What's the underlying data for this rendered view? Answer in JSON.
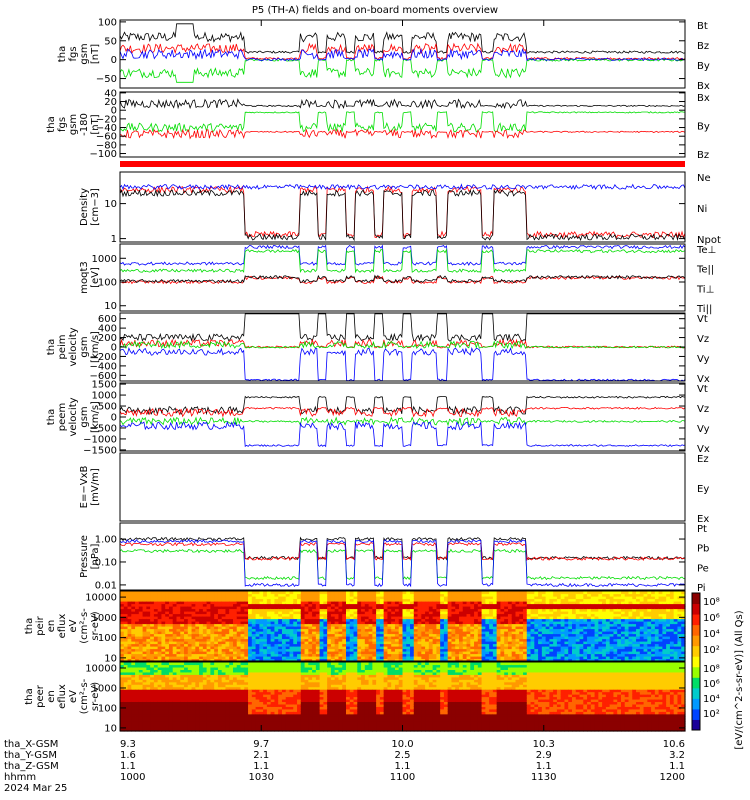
{
  "title": "P5 (TH-A) fields and on-board moments overview",
  "colors": {
    "black": "#000000",
    "red": "#ff0000",
    "green": "#00dd00",
    "blue": "#0000ff"
  },
  "chart_data": {
    "type": "line",
    "title": "P5 (TH-A) fields and on-board moments overview",
    "panels": [
      {
        "id": "fgs",
        "ylabel": [
          "tha",
          "fgs",
          "gsm",
          "[nT]"
        ],
        "ticks": [
          "100",
          "50",
          "0",
          "−50"
        ],
        "tick_vals": [
          100,
          50,
          0,
          -50
        ],
        "ylim": [
          -75,
          105
        ],
        "legend": [
          {
            "name": "Bt",
            "color": "black"
          },
          {
            "name": "Bz",
            "color": "red"
          },
          {
            "name": "By",
            "color": "green"
          },
          {
            "name": "Bx",
            "color": "blue"
          }
        ]
      },
      {
        "id": "fgs180",
        "ylabel": [
          "tha",
          "fgs",
          "gsm",
          "-180",
          "[nT]"
        ],
        "ticks": [
          "40",
          "20",
          "0",
          "−20",
          "−40",
          "−60",
          "−80",
          "−100"
        ],
        "tick_vals": [
          40,
          20,
          0,
          -20,
          -40,
          -60,
          -80,
          -100
        ],
        "ylim": [
          -108,
          42
        ],
        "legend": [
          {
            "name": "Bx",
            "color": "black"
          },
          {
            "name": "By",
            "color": "green"
          },
          {
            "name": "Bz",
            "color": "red"
          }
        ]
      },
      {
        "id": "dens",
        "ylabel": [
          "Density",
          "[cm−3]"
        ],
        "ticks": [
          "10",
          "1"
        ],
        "tick_vals": [
          10,
          1
        ],
        "log": true,
        "ylim": [
          0.8,
          80
        ],
        "legend": [
          {
            "name": "Ne",
            "color": "red"
          },
          {
            "name": "Ni",
            "color": "black"
          },
          {
            "name": "Npot",
            "color": "blue"
          }
        ]
      },
      {
        "id": "temp",
        "ylabel": [
          "moqt3",
          "[eV]"
        ],
        "ticks": [
          "1000",
          "100",
          "10"
        ],
        "tick_vals": [
          1000,
          100,
          10
        ],
        "log": true,
        "ylim": [
          6,
          4000
        ],
        "legend": [
          {
            "name": "Te⊥",
            "color": "red"
          },
          {
            "name": "Te||",
            "color": "black"
          },
          {
            "name": "Ti⊥",
            "color": "blue"
          },
          {
            "name": "Ti||",
            "color": "green"
          }
        ]
      },
      {
        "id": "vi",
        "ylabel": [
          "tha",
          "peim",
          "velocity",
          "gsm",
          "[km/s]"
        ],
        "ticks": [
          "600",
          "400",
          "200",
          "0",
          "−200",
          "−400",
          "−600"
        ],
        "tick_vals": [
          600,
          400,
          200,
          0,
          -200,
          -400,
          -600
        ],
        "ylim": [
          -720,
          720
        ],
        "legend": [
          {
            "name": "Vt",
            "color": "black"
          },
          {
            "name": "Vz",
            "color": "red"
          },
          {
            "name": "Vy",
            "color": "green"
          },
          {
            "name": "Vx",
            "color": "blue"
          }
        ]
      },
      {
        "id": "ve",
        "ylabel": [
          "tha",
          "peem",
          "velocity",
          "gsm",
          "[km/s]"
        ],
        "ticks": [
          "1500",
          "1000",
          "500",
          "0",
          "−500",
          "−1000",
          "−1500"
        ],
        "tick_vals": [
          1500,
          1000,
          500,
          0,
          -500,
          -1000,
          -1500
        ],
        "ylim": [
          -1550,
          1550
        ],
        "legend": [
          {
            "name": "Vt",
            "color": "black"
          },
          {
            "name": "Vz",
            "color": "red"
          },
          {
            "name": "Vy",
            "color": "green"
          },
          {
            "name": "Vx",
            "color": "blue"
          }
        ]
      },
      {
        "id": "efield",
        "ylabel": [
          "E=−VxB",
          "[mV/m]"
        ],
        "ticks": [],
        "tick_vals": [],
        "ylim": [
          -1,
          1
        ],
        "legend": [
          {
            "name": "Ez",
            "color": "red"
          },
          {
            "name": "Ey",
            "color": "green"
          },
          {
            "name": "Ex",
            "color": "blue"
          }
        ]
      },
      {
        "id": "press",
        "ylabel": [
          "Pressure",
          "[nPa]"
        ],
        "ticks": [
          "1.00",
          "0.10",
          "0.01"
        ],
        "tick_vals": [
          1,
          0.1,
          0.01
        ],
        "log": true,
        "ylim": [
          0.006,
          5
        ],
        "legend": [
          {
            "name": "Pt",
            "color": "black"
          },
          {
            "name": "Pb",
            "color": "red"
          },
          {
            "name": "Pe",
            "color": "green"
          },
          {
            "name": "Pi",
            "color": "blue"
          }
        ]
      },
      {
        "id": "ispec",
        "ylabel": [
          "tha",
          "peir",
          "en",
          "eflux",
          "eV",
          "(cm²-s-",
          "sr-eV)"
        ],
        "ticks": [
          "10000",
          "1000",
          "100",
          "10"
        ],
        "tick_vals": [
          10000,
          1000,
          100,
          10
        ],
        "log": true,
        "ylim": [
          7,
          20000
        ]
      },
      {
        "id": "espec",
        "ylabel": [
          "tha",
          "peer",
          "en",
          "eflux",
          "eV",
          "(cm²-s-",
          "sr-eV)"
        ],
        "ticks": [
          "10000",
          "1000",
          "100",
          "10"
        ],
        "tick_vals": [
          10000,
          1000,
          100,
          10
        ],
        "log": true,
        "ylim": [
          7,
          20000
        ]
      }
    ],
    "x_ticks": [
      {
        "label": "1000",
        "x": "9.3",
        "y": "1.6",
        "z": "1.1"
      },
      {
        "label": "1030",
        "x": "9.7",
        "y": "2.1",
        "z": "1.1"
      },
      {
        "label": "1100",
        "x": "10.0",
        "y": "2.5",
        "z": "1.1"
      },
      {
        "label": "1130",
        "x": "10.3",
        "y": "2.9",
        "z": "1.1"
      },
      {
        "label": "1200",
        "x": "10.6",
        "y": "3.2",
        "z": "1.1"
      }
    ],
    "x_rows": [
      "tha_X-GSM",
      "tha_Y-GSM",
      "tha_Z-GSM",
      "hhmm"
    ],
    "date": "2024 Mar 25",
    "colorbar": {
      "ticks": [
        "10⁸",
        "10⁶",
        "10⁴",
        "10²"
      ],
      "label": "[eV/(cm^2-s-sr-eV)] (All Qs)"
    },
    "colorbar_ticks_lower": [
      "10⁸",
      "10⁶",
      "10⁴",
      "10²"
    ]
  }
}
